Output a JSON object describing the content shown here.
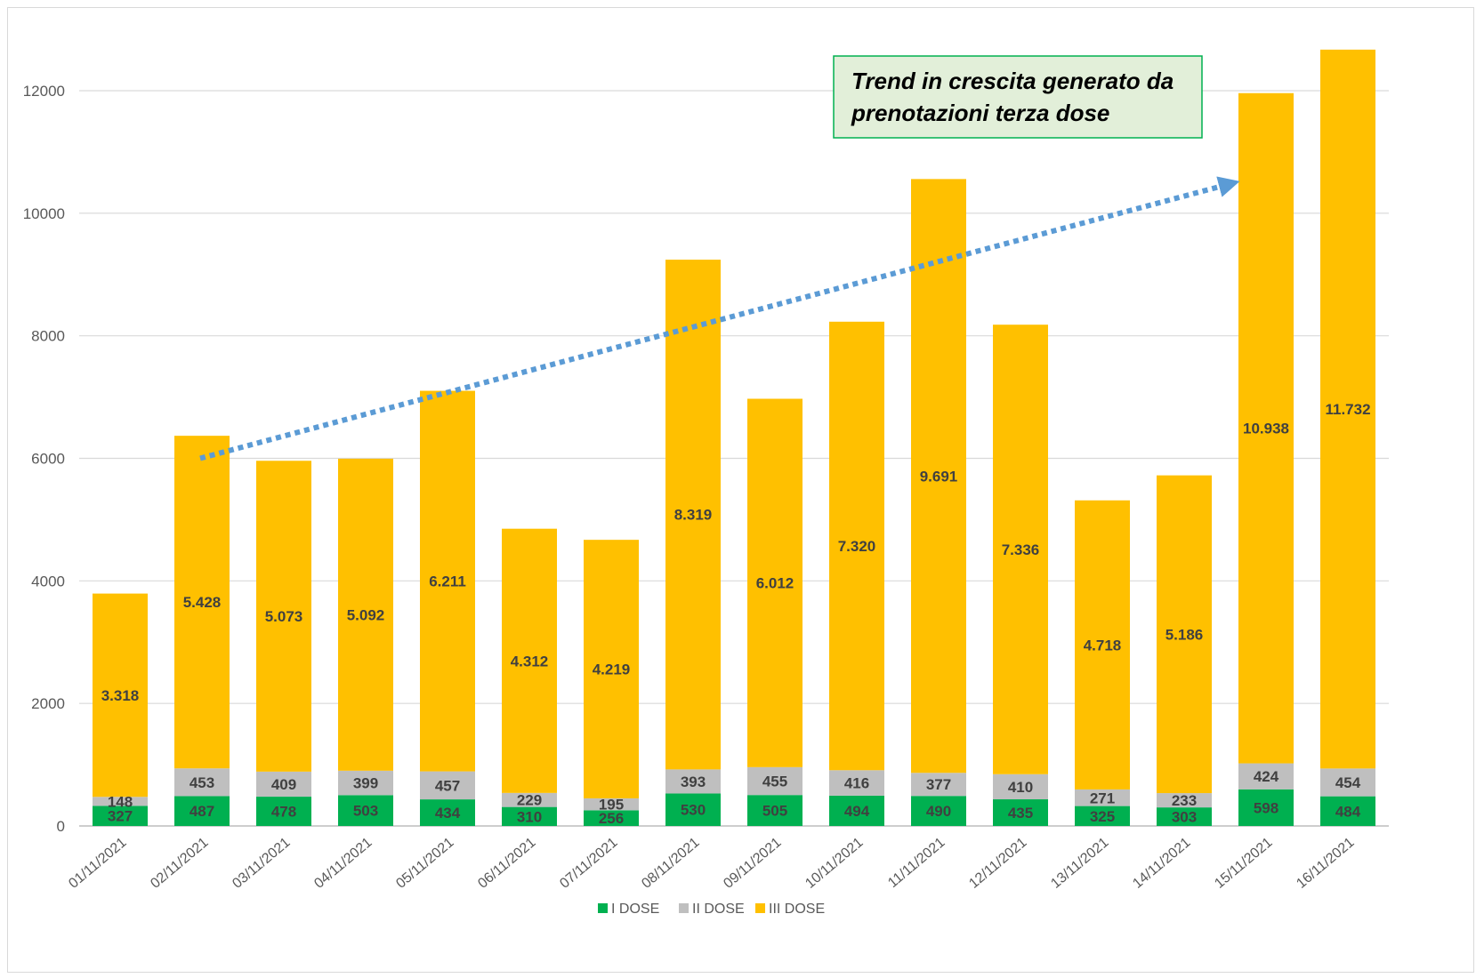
{
  "chart_data": {
    "type": "bar",
    "stacked": true,
    "categories": [
      "01/11/2021",
      "02/11/2021",
      "03/11/2021",
      "04/11/2021",
      "05/11/2021",
      "06/11/2021",
      "07/11/2021",
      "08/11/2021",
      "09/11/2021",
      "10/11/2021",
      "11/11/2021",
      "12/11/2021",
      "13/11/2021",
      "14/11/2021",
      "15/11/2021",
      "16/11/2021"
    ],
    "series": [
      {
        "name": "I DOSE",
        "color": "#00b050",
        "values": [
          327,
          487,
          478,
          503,
          434,
          310,
          256,
          530,
          505,
          494,
          490,
          435,
          325,
          303,
          598,
          484
        ],
        "labels": [
          "327",
          "487",
          "478",
          "503",
          "434",
          "310",
          "256",
          "530",
          "505",
          "494",
          "490",
          "435",
          "325",
          "303",
          "598",
          "484"
        ]
      },
      {
        "name": "II DOSE",
        "color": "#bfbfbf",
        "values": [
          148,
          453,
          409,
          399,
          457,
          229,
          195,
          393,
          455,
          416,
          377,
          410,
          271,
          233,
          424,
          454
        ],
        "labels": [
          "148",
          "453",
          "409",
          "399",
          "457",
          "229",
          "195",
          "393",
          "455",
          "416",
          "377",
          "410",
          "271",
          "233",
          "424",
          "454"
        ]
      },
      {
        "name": "III DOSE",
        "color": "#ffc000",
        "values": [
          3318,
          5428,
          5073,
          5092,
          6211,
          4312,
          4219,
          8319,
          6012,
          7320,
          9691,
          7336,
          4718,
          5186,
          10938,
          11732
        ],
        "labels": [
          "3.318",
          "5.428",
          "5.073",
          "5.092",
          "6.211",
          "4.312",
          "4.219",
          "8.319",
          "6.012",
          "7.320",
          "9.691",
          "7.336",
          "4.718",
          "5.186",
          "10.938",
          "11.732"
        ]
      }
    ],
    "title": "",
    "xlabel": "",
    "ylabel": "",
    "ylim": [
      0,
      12000
    ],
    "yticks": [
      0,
      2000,
      4000,
      6000,
      8000,
      10000,
      12000
    ],
    "ytick_labels": [
      "0",
      "2000",
      "4000",
      "6000",
      "8000",
      "10000",
      "12000"
    ],
    "grid": true,
    "legend_position": "bottom",
    "annotation": {
      "lines": [
        "Trend in crescita generato da",
        "prenotazioni terza dose"
      ],
      "box_fill": "#e2efd9",
      "box_border": "#00b050",
      "arrow_color": "#5b9bd5",
      "arrow_from": {
        "category": "02/11/2021",
        "value": 6000
      },
      "arrow_to": {
        "category": "15/11/2021",
        "value": 10450
      }
    }
  }
}
